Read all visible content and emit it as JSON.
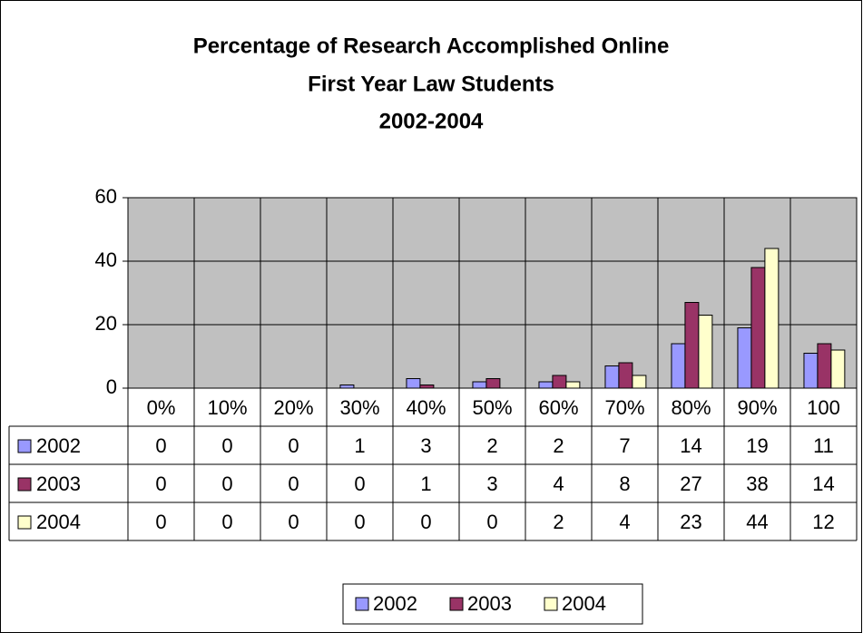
{
  "chart_data": {
    "type": "bar",
    "title": [
      "Percentage of Research Accomplished Online",
      "First Year Law Students",
      "2002-2004"
    ],
    "categories": [
      "0%",
      "10%",
      "20%",
      "30%",
      "40%",
      "50%",
      "60%",
      "70%",
      "80%",
      "90%",
      "100"
    ],
    "series": [
      {
        "name": "2002",
        "color": "#9999ff",
        "values": [
          0,
          0,
          0,
          1,
          3,
          2,
          2,
          7,
          14,
          19,
          11
        ]
      },
      {
        "name": "2003",
        "color": "#993366",
        "values": [
          0,
          0,
          0,
          0,
          1,
          3,
          4,
          8,
          27,
          38,
          14
        ]
      },
      {
        "name": "2004",
        "color": "#ffffcc",
        "values": [
          0,
          0,
          0,
          0,
          0,
          0,
          2,
          4,
          23,
          44,
          12
        ]
      }
    ],
    "ylim": [
      0,
      60
    ],
    "yticks": [
      0,
      20,
      40,
      60
    ],
    "grid": true,
    "legend": "bottom"
  }
}
